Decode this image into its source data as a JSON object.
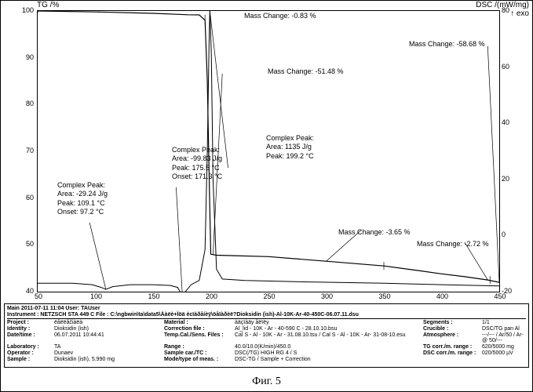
{
  "figure_caption": "Фиг. 5",
  "chart": {
    "type": "line",
    "y_left_label": "TG /%",
    "y_right_label": "DSC /(mW/mg)",
    "y_right_sublabel": "↑ exo",
    "x_label": "Temperature /°C",
    "xlim": [
      50,
      450
    ],
    "x_tick_step": 50,
    "y_left_lim": [
      40,
      100
    ],
    "y_left_tick_step": 10,
    "y_right_lim": [
      -20,
      80
    ],
    "y_right_tick_step": 20,
    "background_color": "#ffffff",
    "grid_color": "#000000",
    "line_color_tg": "#000000",
    "line_color_dsc": "#000000",
    "tg_points": [
      [
        50,
        100
      ],
      [
        100,
        99.8
      ],
      [
        150,
        99.5
      ],
      [
        170,
        99.3
      ],
      [
        180,
        99.2
      ],
      [
        190,
        99.17
      ],
      [
        195,
        98
      ],
      [
        197,
        85
      ],
      [
        199,
        60
      ],
      [
        200,
        48
      ],
      [
        205,
        47.8
      ],
      [
        220,
        47.7
      ],
      [
        250,
        47.5
      ],
      [
        300,
        46.5
      ],
      [
        350,
        45.5
      ],
      [
        380,
        44.5
      ],
      [
        400,
        43.8
      ],
      [
        420,
        43.2
      ],
      [
        440,
        42.5
      ],
      [
        450,
        42
      ]
    ],
    "dsc_points_mW": [
      [
        50,
        -17
      ],
      [
        80,
        -17
      ],
      [
        97.2,
        -17.5
      ],
      [
        105,
        -18.5
      ],
      [
        109.1,
        -19.2
      ],
      [
        115,
        -18.2
      ],
      [
        130,
        -17.5
      ],
      [
        150,
        -17.5
      ],
      [
        165,
        -17.8
      ],
      [
        171.3,
        -18.5
      ],
      [
        174,
        -20.5
      ],
      [
        175.5,
        -22
      ],
      [
        178,
        -20
      ],
      [
        183,
        -17.5
      ],
      [
        190,
        -16
      ],
      [
        195,
        -5
      ],
      [
        197,
        30
      ],
      [
        198.5,
        68
      ],
      [
        199.2,
        80
      ],
      [
        200.5,
        65
      ],
      [
        202,
        20
      ],
      [
        205,
        -12
      ],
      [
        210,
        -15.5
      ],
      [
        230,
        -16
      ],
      [
        280,
        -16.5
      ],
      [
        350,
        -17
      ],
      [
        400,
        -17.5
      ],
      [
        450,
        -18
      ]
    ],
    "annotations": {
      "mass_change_1": "Mass Change: -0.83 %",
      "mass_change_2": "Mass Change: -51.48 %",
      "mass_change_3": "Mass Change: -58.68 %",
      "mass_change_4": "Mass Change: -3.65 %",
      "mass_change_5": "Mass Change: -2.72 %",
      "cp1_title": "Complex Peak:",
      "cp1_area": "Area:   -29.24 J/g",
      "cp1_peak": "Peak:   109.1 °C",
      "cp1_onset": "Onset:   97.2 °C",
      "cp2_title": "Complex Peak:",
      "cp2_area": "Area:   -99.83 J/g",
      "cp2_peak": "Peak:   175.5 °C",
      "cp2_onset": "Onset:  171.3 °C",
      "cp3_title": "Complex Peak:",
      "cp3_area": "Area:   1135 J/g",
      "cp3_peak": "Peak:   199.2 °C"
    }
  },
  "meta": {
    "header": "Main   2011-07-11 11:04   User: TAUser",
    "instrument_line": "Instrument :  NETZSCH STA 449 C    File :    C:\\ngbwin\\ta\\data5\\Äàëè+Ïöä ècïàðåíèÿ\\öåïàðèë?Dioksidin (ish)-Al-10K-Ar-40-450C-06.07.11.dsu",
    "rows": [
      {
        "k1": "Project :",
        "v1": "ëåëëåčiàëà",
        "k2": "Material :",
        "v2": "àäçïàäy åëïëy",
        "k3": "Segments :",
        "v3": "1/1"
      },
      {
        "k1": "Identity :",
        "v1": "Dioksidin (ish)",
        "k2": "Correction file :",
        "v2": "Al_lid - 10K - Ar - 40-590 C - 28.10.10.bsu",
        "k3": "Crucible :",
        "v3": "DSC/TG pan Al"
      },
      {
        "k1": "Date/time :",
        "v1": "06.07.2011 10:44:41",
        "k2": "Temp.Cal./Sens. Files :",
        "v2": "Cal S - Al - 10K - Ar - 31.08.10.tsu / Cal S - Al - 10K - Ar- 31-08-10.esu",
        "k3": "Atmosphere :",
        "v3": "---/--- / Ar/50 / Ar-@ 50/---"
      },
      {
        "k1": "Laboratory :",
        "v1": "TA",
        "k2": "Range :",
        "v2": "40.0/10.0(K/min)/450.0",
        "k3": "TG corr./m. range :",
        "v3": "620/5000 mg"
      },
      {
        "k1": "Operator :",
        "v1": "Dunaev",
        "k2": "Sample car./TC :",
        "v2": "DSC(/TG) HIGH RG 4 / S",
        "k3": "DSC corr./m. range :",
        "v3": "020/5000 µV"
      },
      {
        "k1": "Sample :",
        "v1": "Dioksidin (ish), 5.990 mg",
        "k2": "Mode/type of meas. :",
        "v2": "DSC-TG / Sample + Correction",
        "k3": "",
        "v3": ""
      }
    ]
  }
}
